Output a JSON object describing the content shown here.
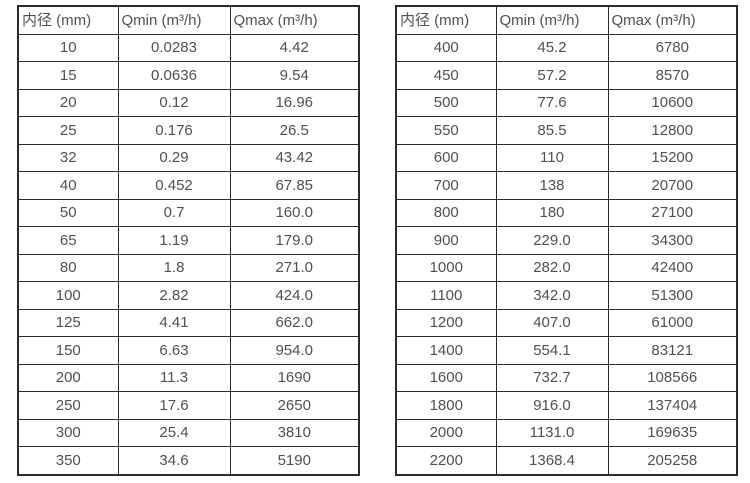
{
  "colors": {
    "background": "#ffffff",
    "border": "#2b2b2b",
    "text": "#515151"
  },
  "chart_data": [
    {
      "type": "table",
      "name": "flow-rates-dn10-dn350",
      "columns": [
        "内径 (mm)",
        "Qmin (m³/h)",
        "Qmax (m³/h)"
      ],
      "rows": [
        [
          "10",
          "0.0283",
          "4.42"
        ],
        [
          "15",
          "0.0636",
          "9.54"
        ],
        [
          "20",
          "0.12",
          "16.96"
        ],
        [
          "25",
          "0.176",
          "26.5"
        ],
        [
          "32",
          "0.29",
          "43.42"
        ],
        [
          "40",
          "0.452",
          "67.85"
        ],
        [
          "50",
          "0.7",
          "160.0"
        ],
        [
          "65",
          "1.19",
          "179.0"
        ],
        [
          "80",
          "1.8",
          "271.0"
        ],
        [
          "100",
          "2.82",
          "424.0"
        ],
        [
          "125",
          "4.41",
          "662.0"
        ],
        [
          "150",
          "6.63",
          "954.0"
        ],
        [
          "200",
          "11.3",
          "1690"
        ],
        [
          "250",
          "17.6",
          "2650"
        ],
        [
          "300",
          "25.4",
          "3810"
        ],
        [
          "350",
          "34.6",
          "5190"
        ]
      ]
    },
    {
      "type": "table",
      "name": "flow-rates-dn400-dn2200",
      "columns": [
        "内径 (mm)",
        "Qmin (m³/h)",
        "Qmax (m³/h)"
      ],
      "rows": [
        [
          "400",
          "45.2",
          "6780"
        ],
        [
          "450",
          "57.2",
          "8570"
        ],
        [
          "500",
          "77.6",
          "10600"
        ],
        [
          "550",
          "85.5",
          "12800"
        ],
        [
          "600",
          "110",
          "15200"
        ],
        [
          "700",
          "138",
          "20700"
        ],
        [
          "800",
          "180",
          "27100"
        ],
        [
          "900",
          "229.0",
          "34300"
        ],
        [
          "1000",
          "282.0",
          "42400"
        ],
        [
          "1100",
          "342.0",
          "51300"
        ],
        [
          "1200",
          "407.0",
          "61000"
        ],
        [
          "1400",
          "554.1",
          "83121"
        ],
        [
          "1600",
          "732.7",
          "108566"
        ],
        [
          "1800",
          "916.0",
          "137404"
        ],
        [
          "2000",
          "1131.0",
          "169635"
        ],
        [
          "2200",
          "1368.4",
          "205258"
        ]
      ]
    }
  ]
}
